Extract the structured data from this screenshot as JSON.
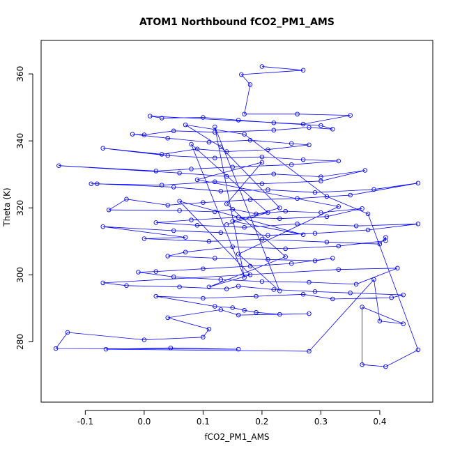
{
  "chart_data": {
    "type": "scatter",
    "title": "ATOM1 Northbound fCO2_PM1_AMS",
    "xlabel": "fCO2_PM1_AMS",
    "ylabel": "Theta (K)",
    "xlim": [
      -0.175,
      0.49
    ],
    "ylim": [
      262,
      370
    ],
    "xticks": [
      -0.1,
      0.0,
      0.1,
      0.2,
      0.3,
      0.4
    ],
    "xtick_labels": [
      "-0.1",
      "0.0",
      "0.1",
      "0.2",
      "0.3",
      "0.4"
    ],
    "yticks": [
      280,
      300,
      320,
      340,
      360
    ],
    "ytick_labels": [
      "280",
      "300",
      "320",
      "340",
      "360"
    ],
    "grid": false,
    "style": "points connected by lines (type='o')",
    "series": [
      {
        "color": "#0000ff",
        "points": [
          [
            0.2,
            362.2
          ],
          [
            0.27,
            361.1
          ],
          [
            0.165,
            359.8
          ],
          [
            0.18,
            356.8
          ],
          [
            0.17,
            348.0
          ],
          [
            0.26,
            348.0
          ],
          [
            0.35,
            347.6
          ],
          [
            0.27,
            345.0
          ],
          [
            0.01,
            347.4
          ],
          [
            0.03,
            346.8
          ],
          [
            0.1,
            347.0
          ],
          [
            0.16,
            346.2
          ],
          [
            0.22,
            345.4
          ],
          [
            0.3,
            344.6
          ],
          [
            0.32,
            343.5
          ],
          [
            0.28,
            344.0
          ],
          [
            0.22,
            343.2
          ],
          [
            0.12,
            342.6
          ],
          [
            0.05,
            343.0
          ],
          [
            0.0,
            341.8
          ],
          [
            -0.02,
            342.0
          ],
          [
            0.04,
            340.8
          ],
          [
            0.11,
            339.6
          ],
          [
            0.18,
            340.2
          ],
          [
            0.25,
            339.2
          ],
          [
            0.28,
            338.8
          ],
          [
            0.21,
            337.4
          ],
          [
            0.14,
            336.8
          ],
          [
            0.09,
            337.6
          ],
          [
            0.03,
            336.0
          ],
          [
            -0.07,
            337.8
          ],
          [
            0.04,
            335.6
          ],
          [
            0.12,
            334.9
          ],
          [
            0.2,
            335.2
          ],
          [
            0.27,
            334.4
          ],
          [
            0.33,
            334.0
          ],
          [
            0.25,
            332.9
          ],
          [
            0.15,
            332.2
          ],
          [
            0.08,
            331.6
          ],
          [
            0.02,
            331.0
          ],
          [
            -0.145,
            332.6
          ],
          [
            0.06,
            330.4
          ],
          [
            0.14,
            329.4
          ],
          [
            0.22,
            330.1
          ],
          [
            0.3,
            329.3
          ],
          [
            0.375,
            331.2
          ],
          [
            0.3,
            328.0
          ],
          [
            0.2,
            327.2
          ],
          [
            0.12,
            327.8
          ],
          [
            0.03,
            326.8
          ],
          [
            -0.09,
            327.2
          ],
          [
            -0.08,
            327.2
          ],
          [
            0.05,
            326.2
          ],
          [
            0.13,
            325.0
          ],
          [
            0.21,
            325.4
          ],
          [
            0.29,
            324.6
          ],
          [
            0.39,
            325.5
          ],
          [
            0.465,
            327.4
          ],
          [
            0.35,
            323.8
          ],
          [
            0.26,
            322.8
          ],
          [
            0.18,
            322.4
          ],
          [
            0.1,
            321.6
          ],
          [
            0.04,
            320.8
          ],
          [
            -0.03,
            322.6
          ],
          [
            -0.06,
            319.4
          ],
          [
            0.06,
            319.2
          ],
          [
            0.12,
            318.8
          ],
          [
            0.15,
            319.6
          ],
          [
            0.19,
            318.2
          ],
          [
            0.24,
            319.0
          ],
          [
            0.3,
            318.6
          ],
          [
            0.37,
            319.8
          ],
          [
            0.31,
            317.4
          ],
          [
            0.23,
            316.8
          ],
          [
            0.16,
            317.2
          ],
          [
            0.08,
            316.4
          ],
          [
            0.02,
            315.6
          ],
          [
            0.09,
            314.8
          ],
          [
            0.17,
            314.2
          ],
          [
            0.26,
            315.2
          ],
          [
            0.36,
            314.6
          ],
          [
            0.465,
            315.2
          ],
          [
            0.38,
            313.4
          ],
          [
            0.29,
            312.4
          ],
          [
            0.21,
            311.8
          ],
          [
            0.13,
            312.6
          ],
          [
            0.05,
            313.2
          ],
          [
            -0.07,
            314.4
          ],
          [
            0.07,
            311.2
          ],
          [
            0.0,
            310.8
          ],
          [
            0.11,
            310.0
          ],
          [
            0.2,
            310.6
          ],
          [
            0.31,
            309.8
          ],
          [
            0.4,
            309.2
          ],
          [
            0.41,
            311.2
          ],
          [
            0.41,
            310.2
          ],
          [
            0.33,
            308.6
          ],
          [
            0.24,
            307.8
          ],
          [
            0.15,
            308.4
          ],
          [
            0.07,
            306.8
          ],
          [
            0.04,
            305.6
          ],
          [
            0.12,
            305.0
          ],
          [
            0.21,
            304.6
          ],
          [
            0.29,
            304.2
          ],
          [
            0.32,
            305.0
          ],
          [
            0.25,
            303.4
          ],
          [
            0.18,
            302.6
          ],
          [
            0.1,
            301.8
          ],
          [
            0.02,
            301.0
          ],
          [
            -0.01,
            300.8
          ],
          [
            0.05,
            299.4
          ],
          [
            0.13,
            298.6
          ],
          [
            0.2,
            298.0
          ],
          [
            0.28,
            297.8
          ],
          [
            0.36,
            297.2
          ],
          [
            0.43,
            302.0
          ],
          [
            0.33,
            301.6
          ],
          [
            -0.07,
            297.6
          ],
          [
            -0.03,
            296.8
          ],
          [
            0.06,
            296.4
          ],
          [
            0.14,
            295.8
          ],
          [
            0.16,
            296.6
          ],
          [
            0.22,
            295.6
          ],
          [
            0.29,
            295.0
          ],
          [
            0.35,
            294.6
          ],
          [
            0.44,
            294.0
          ],
          [
            0.42,
            293.2
          ],
          [
            0.32,
            292.8
          ],
          [
            0.27,
            294.2
          ],
          [
            0.19,
            293.6
          ],
          [
            0.1,
            293.0
          ],
          [
            0.02,
            293.6
          ],
          [
            0.12,
            290.6
          ],
          [
            0.15,
            290.2
          ],
          [
            0.17,
            289.4
          ],
          [
            0.19,
            288.8
          ],
          [
            0.23,
            288.2
          ],
          [
            0.28,
            288.4
          ],
          [
            0.16,
            288.0
          ],
          [
            0.13,
            289.6
          ],
          [
            0.04,
            287.2
          ],
          [
            0.11,
            283.8
          ],
          [
            0.1,
            281.4
          ],
          [
            0.0,
            280.6
          ],
          [
            -0.13,
            282.8
          ],
          [
            -0.15,
            278.0
          ],
          [
            0.16,
            277.8
          ],
          [
            0.045,
            278.2
          ],
          [
            -0.065,
            277.8
          ],
          [
            0.28,
            277.2
          ],
          [
            0.39,
            298.6
          ],
          [
            0.4,
            286.2
          ],
          [
            0.44,
            285.4
          ],
          [
            0.37,
            290.4
          ],
          [
            0.37,
            273.2
          ],
          [
            0.41,
            272.6
          ],
          [
            0.465,
            277.6
          ],
          [
            0.38,
            318.2
          ],
          [
            0.31,
            323.4
          ],
          [
            0.17,
            342.0
          ],
          [
            0.07,
            344.8
          ],
          [
            0.13,
            338.2
          ],
          [
            0.23,
            320.0
          ],
          [
            0.15,
            316.0
          ],
          [
            0.27,
            312.0
          ],
          [
            0.06,
            322.0
          ],
          [
            0.18,
            300.0
          ],
          [
            0.11,
            296.4
          ],
          [
            0.24,
            305.4
          ],
          [
            0.14,
            321.2
          ],
          [
            0.2,
            333.6
          ],
          [
            0.09,
            328.4
          ],
          [
            0.33,
            320.4
          ],
          [
            0.16,
            306.2
          ],
          [
            0.23,
            295.2
          ],
          [
            0.12,
            344.2
          ],
          [
            0.17,
            299.2
          ],
          [
            0.08,
            339.0
          ],
          [
            0.21,
            318.6
          ],
          [
            0.14,
            315.0
          ]
        ]
      }
    ]
  }
}
